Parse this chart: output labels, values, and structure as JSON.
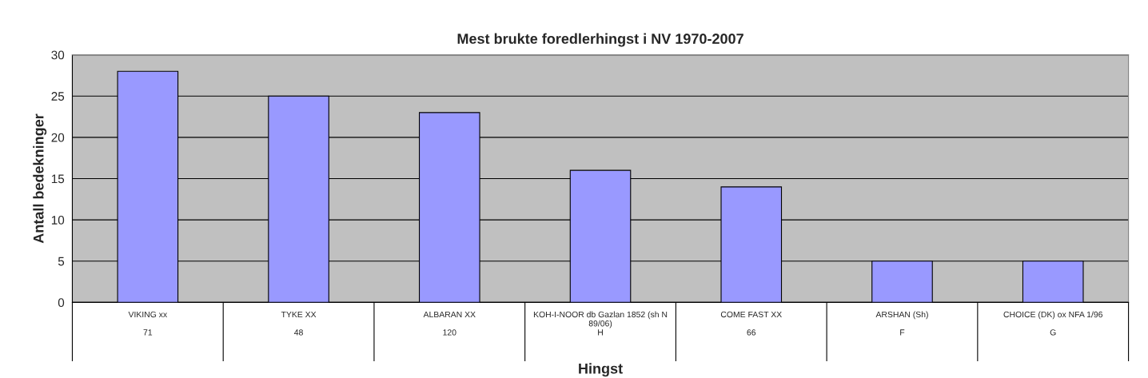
{
  "chart_data": {
    "type": "bar",
    "title": "Mest brukte foredlerhingst i NV 1970-2007",
    "xlabel": "Hingst",
    "ylabel": "Antall bedekninger",
    "categories": [
      "VIKING xx\n\n71",
      "TYKE XX\n\n48",
      "ALBARAN XX\n\n120",
      "KOH-I-NOOR db Gazlan 1852 (sh N\n89/06)\nH",
      "COME FAST XX\n\n66",
      "ARSHAN (Sh)\n\nF",
      "CHOICE (DK) ox NFA 1/96\n\nG"
    ],
    "values": [
      28,
      25,
      23,
      16,
      14,
      5,
      5
    ],
    "color": "#9999ff",
    "ylim": [
      0,
      30
    ],
    "yticks": [
      0,
      5,
      10,
      15,
      20,
      25,
      30
    ],
    "grid": "y",
    "legend": false
  }
}
